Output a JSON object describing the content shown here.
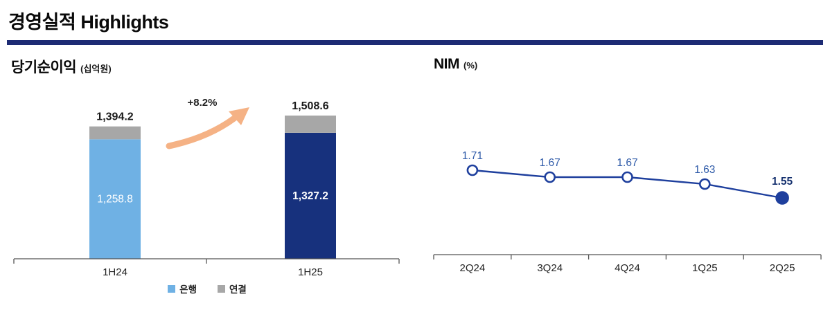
{
  "header": {
    "title": "경영실적 Highlights"
  },
  "left_chart": {
    "title": "당기순이익",
    "unit": "(십억원)",
    "legend": [
      {
        "label": "은행",
        "color": "#6fb1e4"
      },
      {
        "label": "연결",
        "color": "#a7a7a7"
      }
    ]
  },
  "right_chart": {
    "title": "NIM",
    "unit": "(%)"
  },
  "chart_data": [
    {
      "type": "bar",
      "title": "당기순이익 (십억원)",
      "categories": [
        "1H24",
        "1H25"
      ],
      "stack": {
        "bank": {
          "name": "은행",
          "values": [
            1258.8,
            1327.2
          ],
          "labels": [
            "1,258.8",
            "1,327.2"
          ],
          "colors": [
            "#6fb1e4",
            "#17317d"
          ]
        },
        "consolidated_totals": {
          "name": "연결",
          "values": [
            1394.2,
            1508.6
          ],
          "labels": [
            "1,394.2",
            "1,508.6"
          ],
          "color": "#a7a7a7"
        }
      },
      "annotation": {
        "text": "+8.2%",
        "arrow_color": "#f5b285"
      },
      "ylim": [
        0,
        1600
      ],
      "legend_position": "bottom"
    },
    {
      "type": "line",
      "title": "NIM (%)",
      "categories": [
        "2Q24",
        "3Q24",
        "4Q24",
        "1Q25",
        "2Q25"
      ],
      "values": [
        1.71,
        1.67,
        1.67,
        1.63,
        1.55
      ],
      "labels": [
        "1.71",
        "1.67",
        "1.67",
        "1.63",
        "1.55"
      ],
      "line_color": "#1e3f9d",
      "label_color": "#2e5aa8",
      "last_label_color": "#14306e",
      "ylim": [
        1.4,
        1.8
      ]
    }
  ]
}
